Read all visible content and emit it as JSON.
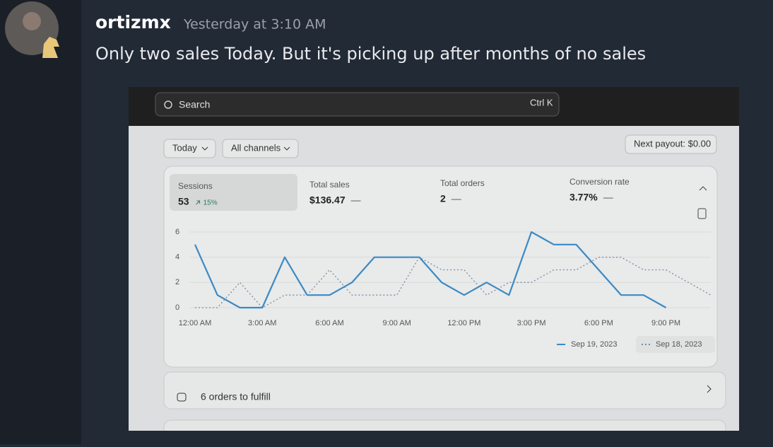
{
  "message": {
    "username": "ortizmx",
    "timestamp": "Yesterday at 3:10 AM",
    "text": "Only two sales Today. But it's picking up after months of no sales"
  },
  "screenshot": {
    "search": "Search",
    "shortcut": "Ctrl K",
    "filters": [
      "Today",
      "All channels"
    ],
    "payout": "Next payout: $0.00",
    "metrics": [
      {
        "label": "Sessions",
        "value": "53",
        "change": "15%"
      },
      {
        "label": "Total sales",
        "value": "$136.47",
        "change": "—"
      },
      {
        "label": "Total orders",
        "value": "2",
        "change": "—"
      },
      {
        "label": "Conversion rate",
        "value": "3.77%",
        "change": "—"
      }
    ],
    "chart_data": {
      "type": "line",
      "x": [
        0,
        1,
        2,
        3,
        4,
        5,
        6,
        7,
        8,
        9,
        10,
        11,
        12,
        13,
        14,
        15,
        16,
        17,
        18,
        19,
        20,
        21,
        22,
        23
      ],
      "xlim": [
        0,
        23
      ],
      "xticks": [
        {
          "value": 0,
          "label": "12:00 AM"
        },
        {
          "value": 3,
          "label": "3:00 AM"
        },
        {
          "value": 6,
          "label": "6:00 AM"
        },
        {
          "value": 9,
          "label": "9:00 AM"
        },
        {
          "value": 12,
          "label": "12:00 PM"
        },
        {
          "value": 15,
          "label": "3:00 PM"
        },
        {
          "value": 18,
          "label": "6:00 PM"
        },
        {
          "value": 21,
          "label": "9:00 PM"
        }
      ],
      "ylim": [
        0,
        6
      ],
      "yticks": [
        0,
        2,
        4,
        6
      ],
      "series": [
        {
          "name": "Sep 19, 2023",
          "color": "#3b8ac4",
          "dash": "solid",
          "values": [
            5,
            1,
            0,
            0,
            4,
            1,
            1,
            2,
            4,
            4,
            4,
            2,
            1,
            2,
            1,
            6,
            5,
            5,
            3,
            1,
            1,
            0,
            null,
            null
          ]
        },
        {
          "name": "Sep 18, 2023",
          "color": "#6f8fa6",
          "dash": "dotted",
          "values": [
            0,
            0,
            2,
            0,
            1,
            1,
            3,
            1,
            1,
            1,
            4,
            3,
            3,
            1,
            2,
            2,
            3,
            3,
            4,
            4,
            3,
            3,
            2,
            1
          ]
        }
      ]
    },
    "fulfill": "6 orders to fulfill"
  }
}
